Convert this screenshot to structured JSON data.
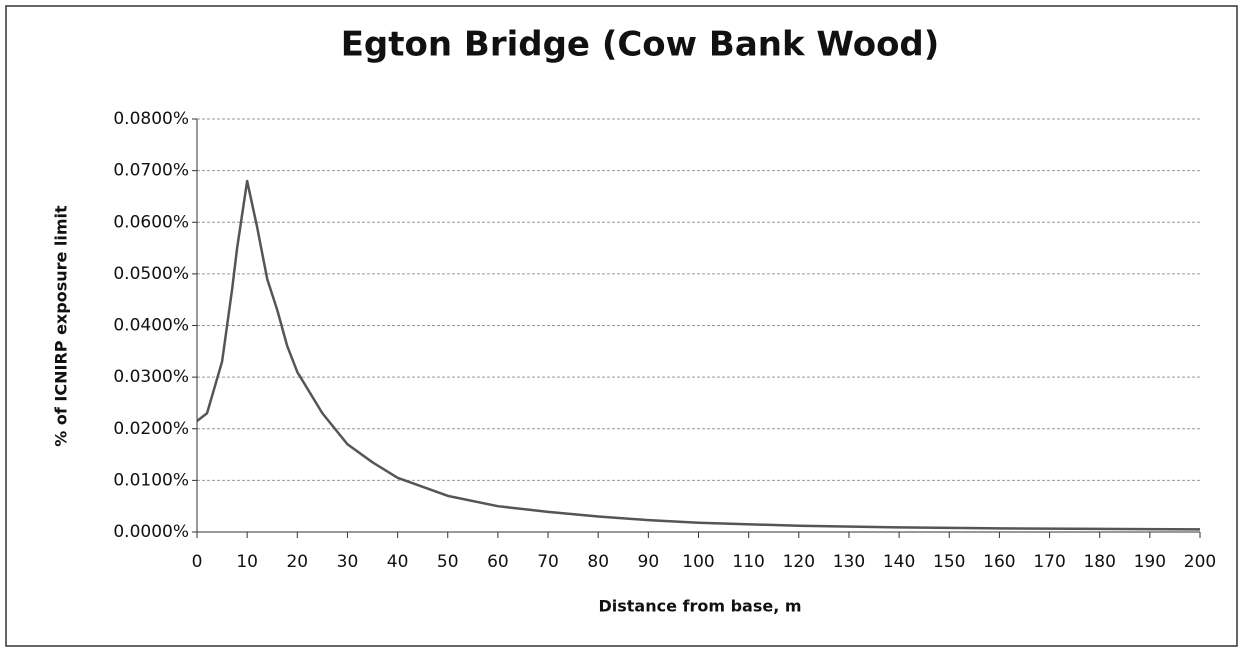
{
  "chart_data": {
    "type": "line",
    "title": "Egton Bridge (Cow Bank Wood)",
    "x_label": "Distance from base, m",
    "y_label": "% of ICNIRP exposure limit",
    "x": [
      0,
      2,
      5,
      7,
      8,
      10,
      12,
      14,
      16,
      18,
      20,
      25,
      30,
      35,
      40,
      50,
      60,
      70,
      80,
      90,
      100,
      120,
      140,
      160,
      180,
      200
    ],
    "series": [
      {
        "name": "Egton Bridge",
        "color": "#555555",
        "values": [
          0.0215,
          0.023,
          0.033,
          0.047,
          0.055,
          0.068,
          0.059,
          0.049,
          0.043,
          0.036,
          0.031,
          0.023,
          0.017,
          0.0135,
          0.0105,
          0.007,
          0.005,
          0.0039,
          0.003,
          0.0023,
          0.0018,
          0.0012,
          0.0009,
          0.0007,
          0.0006,
          0.0005
        ]
      }
    ],
    "xlim": [
      0,
      200
    ],
    "xticks": [
      0,
      10,
      20,
      30,
      40,
      50,
      60,
      70,
      80,
      90,
      100,
      110,
      120,
      130,
      140,
      150,
      160,
      170,
      180,
      190,
      200
    ],
    "ylim": [
      0,
      0.08
    ],
    "yticks": [
      {
        "value": 0,
        "label": "0.0000%"
      },
      {
        "value": 0.01,
        "label": "0.0100%"
      },
      {
        "value": 0.02,
        "label": "0.0200%"
      },
      {
        "value": 0.03,
        "label": "0.0300%"
      },
      {
        "value": 0.04,
        "label": "0.0400%"
      },
      {
        "value": 0.05,
        "label": "0.0500%"
      },
      {
        "value": 0.06,
        "label": "0.0600%"
      },
      {
        "value": 0.07,
        "label": "0.0700%"
      },
      {
        "value": 0.08,
        "label": "0.0800%"
      }
    ],
    "grid": true
  }
}
